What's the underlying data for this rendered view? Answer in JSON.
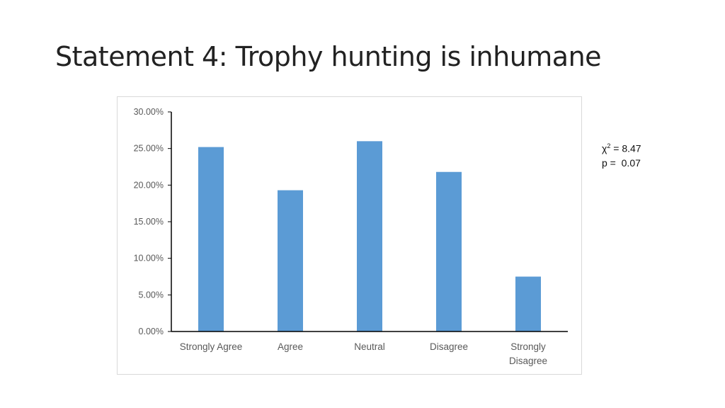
{
  "slide": {
    "title": "Statement 4: Trophy hunting is inhumane"
  },
  "stats": {
    "chi_symbol": "χ",
    "chi_superscript": "2",
    "chi_value": "= 8.47",
    "p_label": "p =",
    "p_value": "0.07"
  },
  "chart_data": {
    "type": "bar",
    "categories": [
      [
        "Strongly Agree"
      ],
      [
        "Agree"
      ],
      [
        "Neutral"
      ],
      [
        "Disagree"
      ],
      [
        "Strongly",
        "Disagree"
      ]
    ],
    "values": [
      25.2,
      19.3,
      26.0,
      21.8,
      7.5
    ],
    "ylim": [
      0,
      30
    ],
    "yticks": [
      0,
      5,
      10,
      15,
      20,
      25,
      30
    ],
    "ytick_labels": [
      "0.00%",
      "5.00%",
      "10.00%",
      "15.00%",
      "20.00%",
      "25.00%",
      "30.00%"
    ],
    "bar_color": "#5b9bd5",
    "grid": false,
    "legend": "none"
  }
}
